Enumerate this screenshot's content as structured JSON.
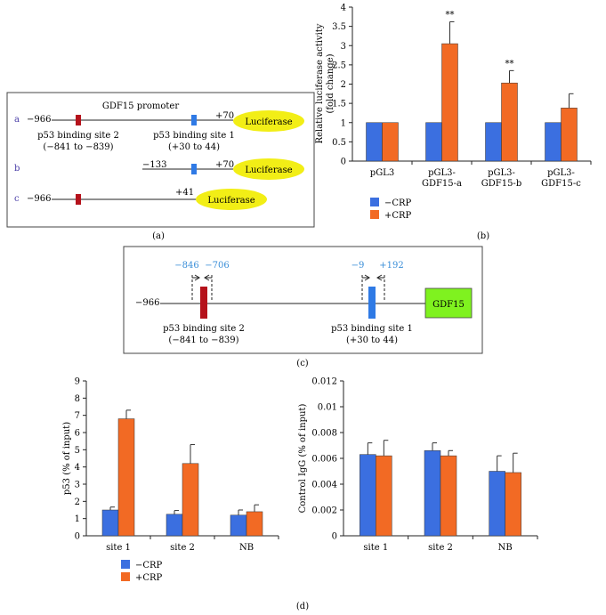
{
  "colors": {
    "minus": "#3b6fe0",
    "plus": "#f26a24",
    "site_red": "#b5121b",
    "site_blue": "#2f7ae5",
    "luciferase": "#f2ee16",
    "gdf15_box": "#7ff21f",
    "label_blue": "#3a8ed8",
    "letter_purple": "#4b3fa8"
  },
  "panel_a": {
    "title": "GDF15 promoter",
    "label": "(a)",
    "constructs": [
      {
        "letter": "a",
        "start": "−966",
        "end": "+70",
        "reporter": "Luciferase"
      },
      {
        "letter": "b",
        "start": "−133",
        "end": "+70",
        "reporter": "Luciferase"
      },
      {
        "letter": "c",
        "start": "−966",
        "end": "+41",
        "reporter": "Luciferase"
      }
    ],
    "site2": {
      "name": "p53 binding site 2",
      "range": "(−841 to −839)"
    },
    "site1": {
      "name": "p53 binding site 1",
      "range": "(+30 to 44)"
    }
  },
  "panel_c": {
    "label": "(c)",
    "start": "−966",
    "gene": "GDF15",
    "primers": [
      "−846",
      "−706",
      "−9",
      "+192"
    ],
    "site2": {
      "name": "p53 binding site 2",
      "range": "(−841 to −839)"
    },
    "site1": {
      "name": "p53 binding site 1",
      "range": "(+30 to 44)"
    }
  },
  "legend": {
    "minus": "−CRP",
    "plus": "+CRP"
  },
  "panel_d_label": "(d)",
  "chart_data": [
    {
      "id": "b",
      "label": "(b)",
      "type": "bar",
      "ylabel": "Relative luciferase activity (fold change)",
      "ylabel_lines": [
        "Relative luciferase activity",
        "(fold change)"
      ],
      "ylim": [
        0,
        4
      ],
      "yticks": [
        "0",
        "0.5",
        "1",
        "1.5",
        "2",
        "2.5",
        "3",
        "3.5",
        "4"
      ],
      "categories": [
        "pGL3",
        "pGL3-GDF15-a",
        "pGL3-GDF15-b",
        "pGL3-GDF15-c"
      ],
      "category_lines": [
        [
          "pGL3"
        ],
        [
          "pGL3-",
          "GDF15-a"
        ],
        [
          "pGL3-",
          "GDF15-b"
        ],
        [
          "pGL3-",
          "GDF15-c"
        ]
      ],
      "series": [
        {
          "name": "−CRP",
          "values": [
            1.0,
            1.0,
            1.0,
            1.0
          ],
          "errors": [
            0,
            0,
            0,
            0
          ]
        },
        {
          "name": "+CRP",
          "values": [
            1.0,
            3.05,
            2.03,
            1.38
          ],
          "errors": [
            0,
            0.57,
            0.32,
            0.37
          ]
        }
      ],
      "annotations": [
        {
          "category": 1,
          "series": 1,
          "text": "**"
        },
        {
          "category": 2,
          "series": 1,
          "text": "**"
        }
      ]
    },
    {
      "id": "d1",
      "type": "bar",
      "ylabel": "p53 (% of input)",
      "ylim": [
        0,
        9
      ],
      "yticks": [
        "0",
        "1",
        "2",
        "3",
        "4",
        "5",
        "6",
        "7",
        "8",
        "9"
      ],
      "categories": [
        "site 1",
        "site 2",
        "NB"
      ],
      "series": [
        {
          "name": "−CRP",
          "values": [
            1.5,
            1.25,
            1.2
          ],
          "errors": [
            0.17,
            0.22,
            0.3
          ]
        },
        {
          "name": "+CRP",
          "values": [
            6.8,
            4.2,
            1.4
          ],
          "errors": [
            0.5,
            1.1,
            0.4
          ]
        }
      ],
      "annotations": []
    },
    {
      "id": "d2",
      "type": "bar",
      "ylabel": "Control IgG (% of input)",
      "ylim": [
        0,
        0.012
      ],
      "yticks": [
        "0",
        "0.002",
        "0.004",
        "0.006",
        "0.008",
        "0.01",
        "0.012"
      ],
      "categories": [
        "site 1",
        "site 2",
        "NB"
      ],
      "series": [
        {
          "name": "−CRP",
          "values": [
            0.0063,
            0.0066,
            0.005
          ],
          "errors": [
            0.0009,
            0.0006,
            0.0012
          ]
        },
        {
          "name": "+CRP",
          "values": [
            0.0062,
            0.0062,
            0.0049
          ],
          "errors": [
            0.0012,
            0.0004,
            0.0015
          ]
        }
      ],
      "annotations": []
    }
  ]
}
